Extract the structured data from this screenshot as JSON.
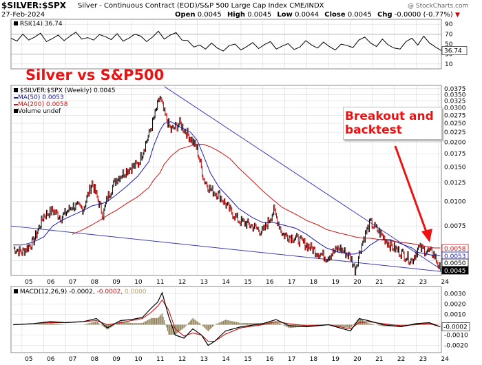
{
  "header": {
    "symbol": "$SILVER:$SPX",
    "description": "Silver - Continuous Contract (EOD)/S&P 500 Large Cap Index  CME/INDX",
    "date": "27-Feb-2024",
    "open_label": "Open",
    "open": "0.0045",
    "high_label": "High",
    "high": "0.0045",
    "low_label": "Low",
    "low": "0.0044",
    "close_label": "Close",
    "close": "0.0045",
    "chg_label": "Chg",
    "chg": "-0.0000 (-0.77%)",
    "watermark": "@ StockCharts.com"
  },
  "annotations": {
    "title": "Silver vs S&P500",
    "breakout": "Breakout and backtest"
  },
  "colors": {
    "price": "#000000",
    "down_bar": "#cc0000",
    "ma50": "#1a1aa6",
    "ma200": "#cc1111",
    "trendline": "#3a3ab8",
    "annotation": "#ee1111",
    "histogram": "#8b7d52",
    "grid": "#d8d8d8"
  },
  "chart_data": [
    {
      "type": "line",
      "panel": "rsi",
      "legend": "RSI(14) 36.74",
      "last_value_label": "36.74",
      "ticks": [
        "90",
        "70",
        "50",
        "30",
        "10"
      ],
      "levels": [
        70,
        30
      ],
      "ylim": [
        0,
        100
      ],
      "x_start_year": 2004.5,
      "x_end_year": 2024.15,
      "series": [
        {
          "values": [
            62,
            56,
            70,
            58,
            64,
            72,
            55,
            61,
            68,
            57,
            66,
            74,
            60,
            63,
            58,
            69,
            65,
            59,
            71,
            56,
            62,
            70,
            66,
            55,
            64,
            76,
            60,
            68,
            73,
            58,
            57,
            44,
            48,
            40,
            52,
            42,
            36,
            47,
            50,
            38,
            45,
            53,
            41,
            49,
            55,
            40,
            46,
            51,
            39,
            44,
            57,
            48,
            42,
            54,
            45,
            38,
            50,
            47,
            43,
            58,
            64,
            52,
            45,
            60,
            48,
            42,
            40,
            55,
            62,
            48,
            66,
            52,
            44,
            37
          ]
        }
      ]
    },
    {
      "type": "line",
      "panel": "price",
      "legend": [
        "$SILVER:$SPX (Weekly) 0.0045",
        "MA(50) 0.0053",
        "MA(200) 0.0058",
        "Volume undef"
      ],
      "scale": "log",
      "ylim": [
        0.0042,
        0.039
      ],
      "ticks": [
        "0.0375",
        "0.0350",
        "0.0325",
        "0.0300",
        "0.0275",
        "0.0250",
        "0.0225",
        "0.0200",
        "0.0175",
        "0.0150",
        "0.0125",
        "0.0100",
        "0.0075",
        "0.0050"
      ],
      "xlabels": [
        "05",
        "06",
        "07",
        "08",
        "09",
        "10",
        "11",
        "12",
        "13",
        "14",
        "15",
        "16",
        "17",
        "18",
        "19",
        "20",
        "21",
        "22",
        "23",
        "24"
      ],
      "value_labels": [
        "0.0058",
        "0.0053",
        "0.0050",
        "0.0045"
      ],
      "x": [
        2004.6,
        2005.0,
        2005.5,
        2006.0,
        2006.4,
        2006.8,
        2007.3,
        2007.8,
        2008.2,
        2008.7,
        2008.9,
        2009.3,
        2009.8,
        2010.3,
        2010.8,
        2011.0,
        2011.3,
        2011.5,
        2011.8,
        2012.2,
        2012.7,
        2013.0,
        2013.3,
        2013.6,
        2014.0,
        2014.5,
        2014.9,
        2015.5,
        2016.0,
        2016.5,
        2016.9,
        2017.5,
        2018.0,
        2018.5,
        2018.9,
        2019.5,
        2020.0,
        2020.2,
        2020.6,
        2020.9,
        2021.3,
        2021.8,
        2022.3,
        2022.8,
        2023.1,
        2023.5,
        2023.8,
        2024.1
      ],
      "series": [
        {
          "name": "$SILVER:$SPX",
          "values": [
            0.0058,
            0.0055,
            0.0062,
            0.0085,
            0.009,
            0.0083,
            0.0095,
            0.0092,
            0.0125,
            0.0085,
            0.0105,
            0.013,
            0.0145,
            0.0155,
            0.022,
            0.026,
            0.034,
            0.028,
            0.023,
            0.025,
            0.021,
            0.0185,
            0.013,
            0.0115,
            0.0108,
            0.009,
            0.008,
            0.0075,
            0.007,
            0.009,
            0.0068,
            0.0065,
            0.006,
            0.0055,
            0.0052,
            0.0058,
            0.0052,
            0.0045,
            0.0065,
            0.0078,
            0.007,
            0.006,
            0.0055,
            0.005,
            0.0058,
            0.0056,
            0.0054,
            0.0045
          ]
        },
        {
          "name": "MA(50)",
          "values": [
            0.006,
            0.006,
            0.0062,
            0.0066,
            0.0075,
            0.008,
            0.0085,
            0.009,
            0.0095,
            0.0098,
            0.01,
            0.0108,
            0.012,
            0.0135,
            0.016,
            0.019,
            0.023,
            0.025,
            0.0255,
            0.024,
            0.0225,
            0.0205,
            0.017,
            0.014,
            0.0118,
            0.0103,
            0.0092,
            0.0083,
            0.0078,
            0.0078,
            0.0076,
            0.0073,
            0.0068,
            0.0062,
            0.0058,
            0.0055,
            0.0054,
            0.0054,
            0.0056,
            0.006,
            0.0064,
            0.0064,
            0.0061,
            0.0058,
            0.0055,
            0.0054,
            0.0053,
            0.0053
          ]
        },
        {
          "name": "MA(200)",
          "values": [
            null,
            null,
            null,
            null,
            null,
            null,
            0.0068,
            0.0072,
            0.0076,
            0.0082,
            0.0085,
            0.009,
            0.0098,
            0.0106,
            0.0118,
            0.0128,
            0.014,
            0.0155,
            0.017,
            0.0185,
            0.0192,
            0.0196,
            0.0195,
            0.019,
            0.018,
            0.0165,
            0.0148,
            0.0128,
            0.0113,
            0.0101,
            0.0093,
            0.0086,
            0.008,
            0.0076,
            0.0072,
            0.0069,
            0.0067,
            0.0066,
            0.0065,
            0.0065,
            0.0064,
            0.0063,
            0.0062,
            0.0061,
            0.006,
            0.0059,
            0.0058,
            0.0058
          ]
        }
      ],
      "trendlines": [
        {
          "x": [
            2011.5,
            2024.15
          ],
          "y": [
            0.0385,
            0.0045
          ]
        },
        {
          "x": [
            2004.5,
            2024.15
          ],
          "y": [
            0.0075,
            0.0044
          ]
        }
      ]
    },
    {
      "type": "line",
      "panel": "macd",
      "legend_parts": [
        "MACD(12,26,9) -0.0002,",
        " -0.0002,",
        " 0.0000"
      ],
      "ticks": [
        "0.0030",
        "0.0020",
        "0.0010",
        "-0.0000",
        "-0.0010",
        "-0.0020"
      ],
      "last_value_label": "-0.0002",
      "ylim": [
        -0.0027,
        0.0037
      ],
      "xlabels": [
        "05",
        "06",
        "07",
        "08",
        "09",
        "10",
        "11",
        "12",
        "13",
        "14",
        "15",
        "16",
        "17",
        "18",
        "19",
        "20",
        "21",
        "22",
        "23",
        "24"
      ],
      "x": [
        2004.6,
        2005.5,
        2006.3,
        2007.0,
        2007.8,
        2008.4,
        2008.9,
        2009.5,
        2010.0,
        2010.5,
        2010.9,
        2011.2,
        2011.4,
        2011.7,
        2012.0,
        2012.4,
        2012.8,
        2013.2,
        2013.5,
        2013.8,
        2014.3,
        2015.0,
        2016.0,
        2016.6,
        2017.2,
        2018.0,
        2019.0,
        2020.0,
        2020.4,
        2020.8,
        2021.5,
        2022.3,
        2023.0,
        2023.6,
        2024.1
      ],
      "series": [
        {
          "name": "MACD",
          "values": [
            0.0,
            0.0001,
            0.0003,
            0.0002,
            0.0003,
            0.0006,
            -0.0003,
            0.0004,
            0.0005,
            0.0007,
            0.0016,
            0.0022,
            0.0031,
            0.0008,
            -0.001,
            -0.0013,
            -0.0004,
            -0.001,
            -0.002,
            -0.0016,
            -0.0006,
            -0.0002,
            0.0001,
            0.0005,
            -0.0001,
            -0.0002,
            0.0,
            -0.0006,
            0.0006,
            0.0004,
            0.0,
            -0.0002,
            0.0001,
            0.0002,
            -0.0002
          ]
        },
        {
          "name": "Signal",
          "values": [
            0.0,
            0.0001,
            0.0002,
            0.0002,
            0.0003,
            0.0004,
            0.0,
            0.0002,
            0.0004,
            0.0006,
            0.0012,
            0.0018,
            0.0024,
            0.0014,
            -0.0004,
            -0.0011,
            -0.0008,
            -0.001,
            -0.0016,
            -0.0016,
            -0.0009,
            -0.0003,
            0.0,
            0.0003,
            0.0001,
            -0.0001,
            0.0,
            -0.0004,
            0.0002,
            0.0003,
            0.0001,
            -0.0001,
            0.0,
            0.0001,
            -0.0002
          ]
        }
      ]
    }
  ]
}
